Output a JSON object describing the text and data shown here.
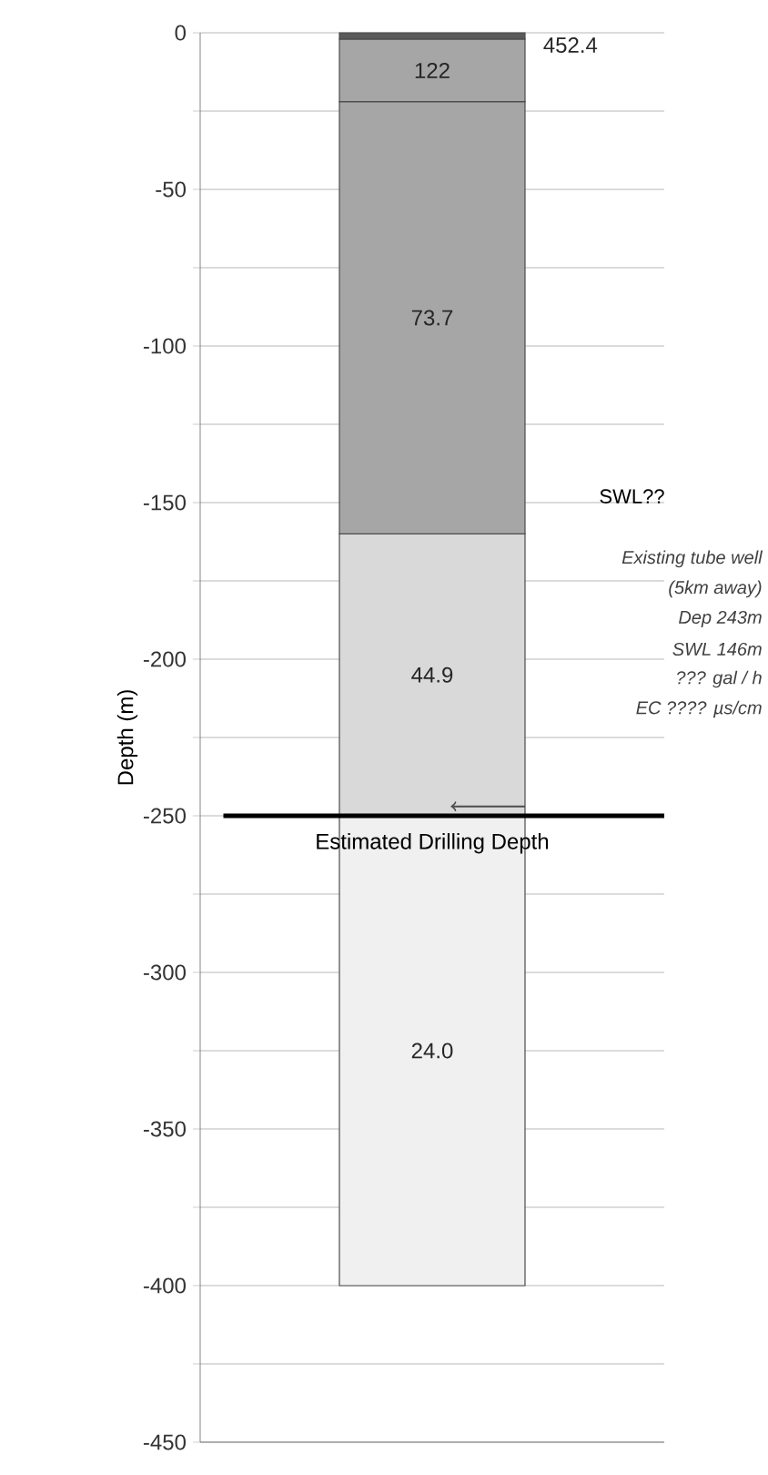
{
  "chart_data": {
    "type": "bar",
    "stacked": true,
    "ylabel": "Depth (m)",
    "categories": [
      null
    ],
    "series": [
      {
        "color": "#5a5a5a",
        "values": [
          -2
        ]
      },
      {
        "color": "#a6a6a6",
        "values": [
          -20
        ]
      },
      {
        "color": "#a6a6a6",
        "values": [
          -138
        ]
      },
      {
        "color": "#d9d9d9",
        "values": [
          -90
        ]
      },
      {
        "color": "#f0f0f0",
        "values": [
          -150
        ]
      }
    ],
    "ylim": [
      -450,
      0
    ],
    "yticks": [
      0,
      {
        "value": -25,
        "label": null
      },
      -50,
      {
        "value": -75,
        "label": null
      },
      -100,
      {
        "value": -125,
        "label": null
      },
      -150,
      {
        "value": -175,
        "label": null
      },
      -200,
      {
        "value": -225,
        "label": null
      },
      -250,
      {
        "value": -275,
        "label": null
      },
      -300,
      {
        "value": -325,
        "label": null
      },
      -350,
      {
        "value": -375,
        "label": null
      },
      -400,
      {
        "value": -425,
        "label": null
      },
      -450
    ],
    "grid": "y",
    "ref_lines": [
      {
        "axis": "y",
        "value": -250,
        "label": "Estimated Drilling Depth",
        "color": "#000000"
      }
    ],
    "annotations": [
      "452.4",
      "122",
      "73.7",
      "44.9",
      "24.0",
      "SWL??",
      "Existing tube well",
      "(5km  away)",
      "Dep 243m",
      "SWL 146m",
      "??? gal / h",
      "EC ???? µs/cm"
    ]
  }
}
